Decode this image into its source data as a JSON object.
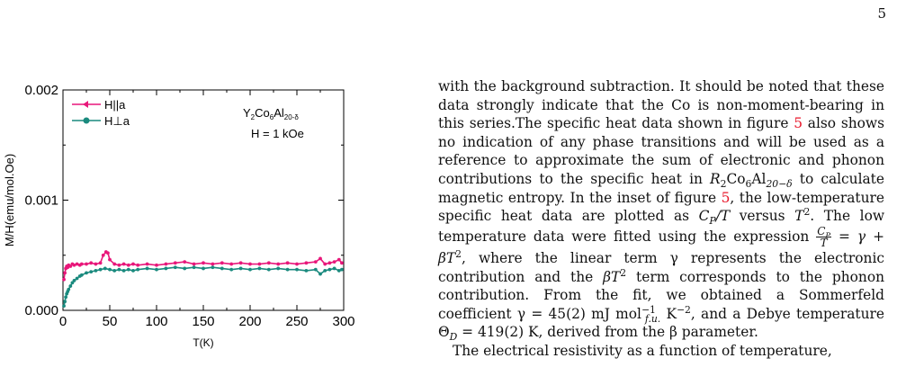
{
  "page": {
    "number": "5"
  },
  "chart_data": {
    "type": "scatter",
    "xlabel": "T(K)",
    "ylabel": "M/H(emu/mol.Oe)",
    "xlim": [
      0,
      300
    ],
    "ylim": [
      0,
      0.002
    ],
    "xticks": [
      "0",
      "50",
      "100",
      "150",
      "200",
      "250",
      "300"
    ],
    "yticks": [
      "0.000",
      "0.001",
      "0.002"
    ],
    "legend_position": "top-left",
    "annotation_lines": [
      {
        "pre": "Y",
        "sub1": "2",
        "mid": "Co",
        "sub2": "6",
        "mid2": "Al",
        "sub3": "20-δ"
      },
      "H = 1 kOe"
    ],
    "series": [
      {
        "name": "H||a",
        "color": "#e8177a",
        "x": [
          1,
          2,
          3,
          4,
          5,
          6,
          8,
          10,
          12,
          15,
          18,
          20,
          25,
          30,
          35,
          40,
          43,
          46,
          48,
          50,
          55,
          60,
          65,
          70,
          75,
          80,
          90,
          100,
          110,
          120,
          130,
          140,
          150,
          160,
          170,
          180,
          190,
          200,
          210,
          220,
          230,
          240,
          250,
          260,
          270,
          275,
          280,
          285,
          290,
          295,
          298
        ],
        "y": [
          0.00028,
          0.00034,
          0.00038,
          0.0004,
          0.00039,
          0.00041,
          0.0004,
          0.00042,
          0.00041,
          0.00042,
          0.00041,
          0.00042,
          0.00042,
          0.00043,
          0.00042,
          0.00043,
          0.0005,
          0.00053,
          0.00052,
          0.00046,
          0.00042,
          0.00041,
          0.00042,
          0.00041,
          0.00042,
          0.00041,
          0.00042,
          0.00041,
          0.00042,
          0.00043,
          0.00044,
          0.00042,
          0.00043,
          0.00042,
          0.00043,
          0.00042,
          0.00043,
          0.00042,
          0.00042,
          0.00043,
          0.00042,
          0.00043,
          0.00042,
          0.00043,
          0.00044,
          0.00047,
          0.00042,
          0.00043,
          0.00044,
          0.00046,
          0.00043
        ]
      },
      {
        "name": "H⊥a",
        "color": "#1a8a7e",
        "x": [
          1,
          2,
          3,
          4,
          5,
          6,
          8,
          10,
          12,
          15,
          18,
          20,
          25,
          30,
          35,
          40,
          45,
          50,
          55,
          60,
          65,
          70,
          75,
          80,
          90,
          100,
          110,
          120,
          130,
          140,
          150,
          160,
          170,
          180,
          190,
          200,
          210,
          220,
          230,
          240,
          250,
          260,
          270,
          275,
          280,
          285,
          290,
          295,
          298
        ],
        "y": [
          4e-05,
          8e-05,
          0.00012,
          0.00015,
          0.00017,
          0.00019,
          0.00022,
          0.00025,
          0.00027,
          0.00029,
          0.00031,
          0.00032,
          0.00034,
          0.00035,
          0.00036,
          0.00037,
          0.00038,
          0.00037,
          0.00036,
          0.00037,
          0.00036,
          0.00037,
          0.00036,
          0.00037,
          0.00038,
          0.00037,
          0.00038,
          0.00039,
          0.00038,
          0.00039,
          0.00038,
          0.00039,
          0.00038,
          0.00037,
          0.00038,
          0.00037,
          0.00038,
          0.00037,
          0.00038,
          0.00037,
          0.00037,
          0.00036,
          0.00037,
          0.00033,
          0.00036,
          0.00037,
          0.00038,
          0.00036,
          0.00037
        ]
      }
    ]
  },
  "text": {
    "p1": {
      "s1": "with the background subtraction. It should be noted that these data strongly indicate that the Co is non-moment-bearing in this series.The specific heat data shown in figure ",
      "ref_fig": "5",
      "s2": " also shows no indication of any phase transitions and will be used as a reference to approximate the sum of electronic and phonon contributions to the specific heat in ",
      "formula_R": "R",
      "formula_sub1": "2",
      "formula_mid": "Co",
      "formula_sub2": "6",
      "formula_mid2": "Al",
      "formula_sub3": "20−δ",
      "s3": " to calculate magnetic entropy. In the inset of figure ",
      "ref_fig2": "5",
      "s4": ", the low-temperature specific heat data are plotted as ",
      "cp": "C",
      "cp_sub": "P",
      "slash_t": "/T",
      "versus": " versus ",
      "t2": "T",
      "t2_sup": "2",
      "s5": ". The low temperature data were fitted using the expression ",
      "frac_num": "C",
      "frac_num_sub": "P",
      "frac_den": "T",
      "eq_rhs": " = γ + βT",
      "eq_sup": "2",
      "s6": ", where the linear term γ represents the electronic contribution and the ",
      "beta_t": "βT",
      "beta_sup": "2",
      "s7": " term corresponds to the phonon contribution. From the fit, we obtained a Sommerfeld coefficient γ = 45(2) mJ mol",
      "unit_sup": "−1",
      "unit_sub": "f.u.",
      "s8": " K",
      "k_sup": "−2",
      "s9": ", and a Debye temperature Θ",
      "theta_sub": "D",
      "s10": " = 419(2) K, derived from the β parameter."
    },
    "p2": "The electrical resistivity as a function of temperature,"
  }
}
